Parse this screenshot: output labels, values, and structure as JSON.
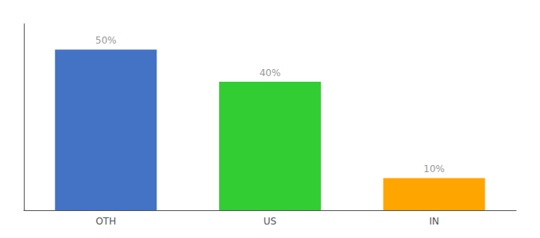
{
  "chart_data": {
    "type": "bar",
    "categories": [
      "OTH",
      "US",
      "IN"
    ],
    "values": [
      50,
      40,
      10
    ],
    "value_labels": [
      "50%",
      "40%",
      "10%"
    ],
    "colors": [
      "#4472C4",
      "#32CD32",
      "#FFA500"
    ],
    "ylim": [
      0,
      58
    ],
    "data_labels": true,
    "tick_labels": "x",
    "grid": false
  }
}
